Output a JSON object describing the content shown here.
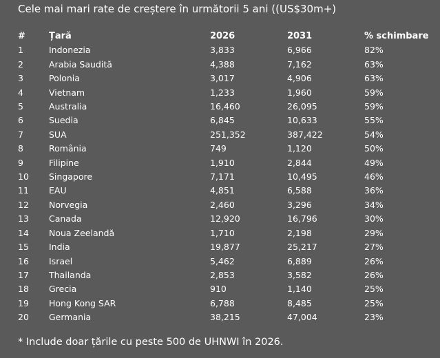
{
  "title": "Cele mai mari rate de creștere în următorii 5 ani ((US$30m+)",
  "table": {
    "headers": [
      "#",
      "Țară",
      "2026",
      "2031",
      "% schimbare"
    ],
    "rows": [
      [
        "1",
        "Indonezia",
        "3,833",
        "6,966",
        "82%"
      ],
      [
        "2",
        "Arabia Saudită",
        "4,388",
        "7,162",
        "63%"
      ],
      [
        "3",
        "Polonia",
        "3,017",
        "4,906",
        "63%"
      ],
      [
        "4",
        "Vietnam",
        "1,233",
        "1,960",
        "59%"
      ],
      [
        "5",
        "Australia",
        "16,460",
        "26,095",
        "59%"
      ],
      [
        "6",
        "Suedia",
        "6,845",
        "10,633",
        "55%"
      ],
      [
        "7",
        "SUA",
        "251,352",
        "387,422",
        "54%"
      ],
      [
        "8",
        "România",
        "749",
        "1,120",
        "50%"
      ],
      [
        "9",
        "Filipine",
        "1,910",
        "2,844",
        "49%"
      ],
      [
        "10",
        "Singapore",
        "7,171",
        "10,495",
        "46%"
      ],
      [
        "11",
        "EAU",
        "4,851",
        "6,588",
        "36%"
      ],
      [
        "12",
        "Norvegia",
        "2,460",
        "3,296",
        "34%"
      ],
      [
        "13",
        "Canada",
        "12,920",
        "16,796",
        "30%"
      ],
      [
        "14",
        "Noua Zeelandă",
        "1,710",
        "2,198",
        "29%"
      ],
      [
        "15",
        "India",
        "19,877",
        "25,217",
        "27%"
      ],
      [
        "16",
        "Israel",
        "5,462",
        "6,889",
        "26%"
      ],
      [
        "17",
        "Thailanda",
        "2,853",
        "3,582",
        "26%"
      ],
      [
        "18",
        "Grecia",
        "910",
        "1,140",
        "25%"
      ],
      [
        "19",
        "Hong Kong SAR",
        "6,788",
        "8,485",
        "25%"
      ],
      [
        "20",
        "Germania",
        "38,215",
        "47,004",
        "23%"
      ]
    ]
  },
  "footnote": "* Include doar țările cu peste 500 de UHNWI în 2026."
}
